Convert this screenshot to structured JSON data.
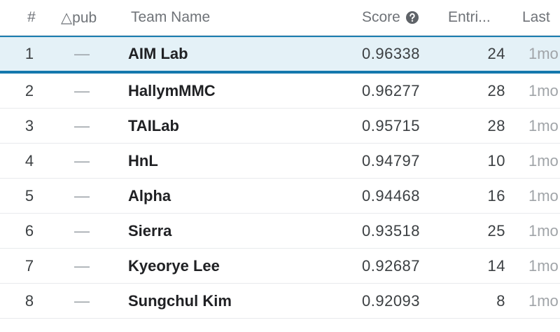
{
  "header": {
    "rank": "#",
    "delta": "△pub",
    "team": "Team Name",
    "score": "Score",
    "entries": "Entri...",
    "last": "Last"
  },
  "rows": [
    [
      "1",
      "—",
      "AIM Lab",
      "0.96338",
      "24",
      "1mo"
    ],
    [
      "2",
      "—",
      "HallymMMC",
      "0.96277",
      "28",
      "1mo"
    ],
    [
      "3",
      "—",
      "TAILab",
      "0.95715",
      "28",
      "1mo"
    ],
    [
      "4",
      "—",
      "HnL",
      "0.94797",
      "10",
      "1mo"
    ],
    [
      "5",
      "—",
      "Alpha",
      "0.94468",
      "16",
      "1mo"
    ],
    [
      "6",
      "—",
      "Sierra",
      "0.93518",
      "25",
      "1mo"
    ],
    [
      "7",
      "—",
      "Kyeorye Lee",
      "0.92687",
      "14",
      "1mo"
    ],
    [
      "8",
      "—",
      "Sungchul Kim",
      "0.92093",
      "8",
      "1mo"
    ]
  ]
}
